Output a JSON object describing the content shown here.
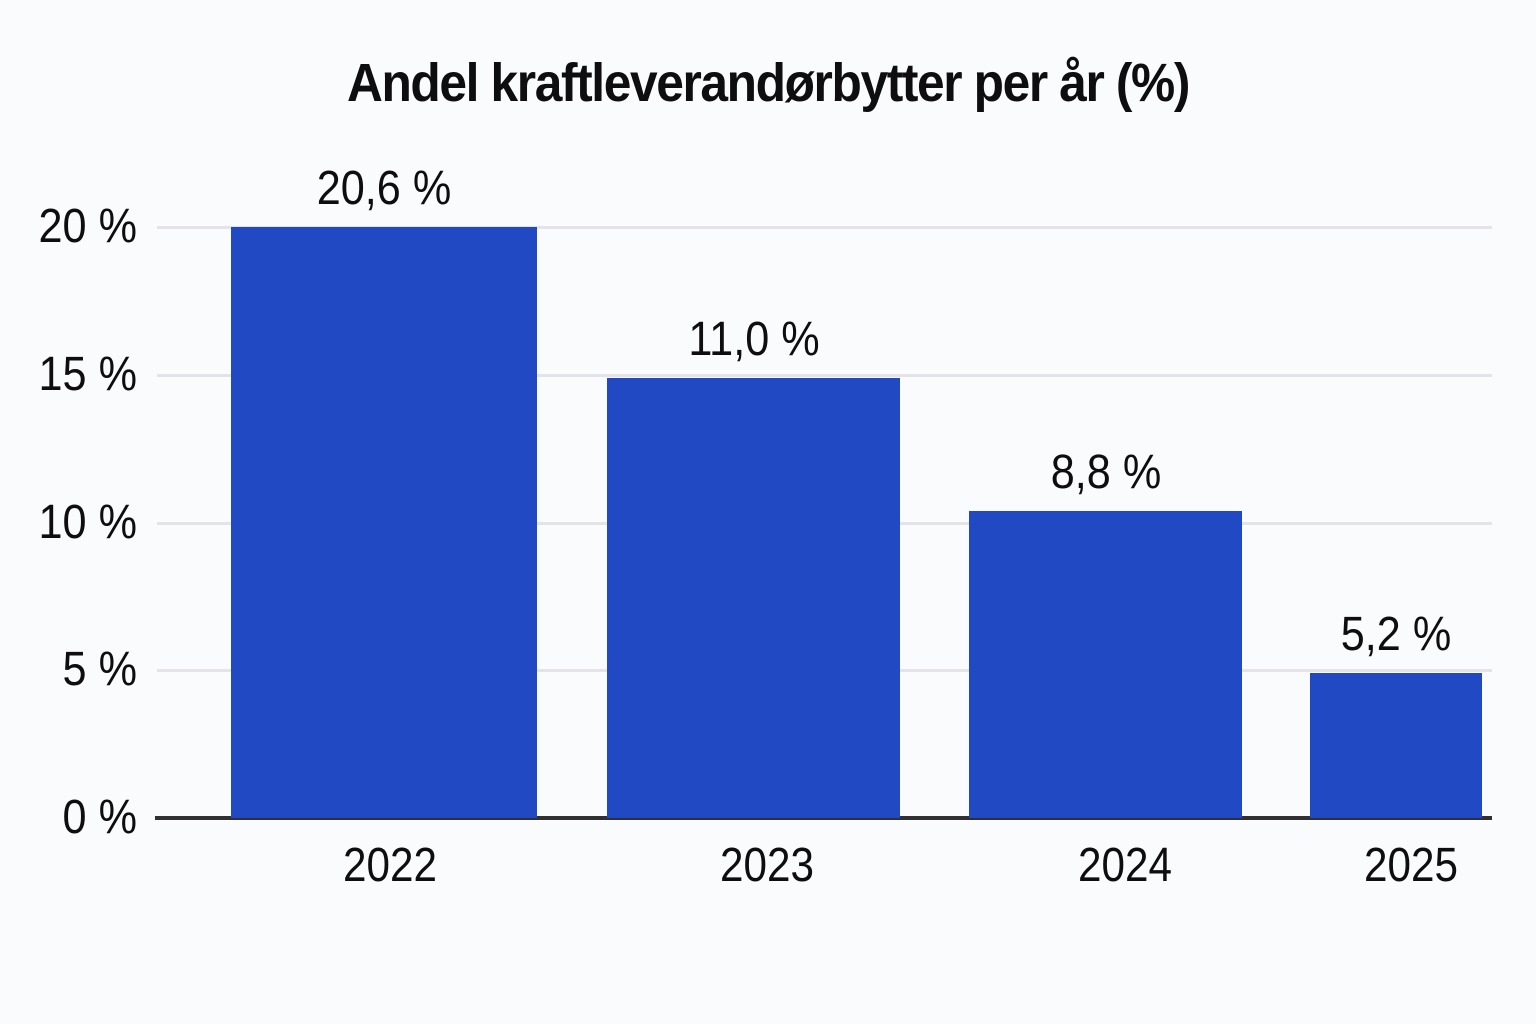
{
  "chart_data": {
    "type": "bar",
    "title": "Andel kraftleverandørbytter per år (%)",
    "categories": [
      "2022",
      "2023",
      "2024",
      "2025"
    ],
    "values": [
      20.6,
      11.0,
      8.8,
      5.2
    ],
    "value_labels": [
      "20,6 %",
      "11,0 %",
      "8,8 %",
      "5,2 %"
    ],
    "visual_bar_heights_axis_units": [
      20.0,
      14.9,
      10.4,
      4.9
    ],
    "y_ticks": [
      {
        "value": 0,
        "label": "0 %"
      },
      {
        "value": 5,
        "label": "5 %"
      },
      {
        "value": 10,
        "label": "10 %"
      },
      {
        "value": 15,
        "label": "15 %"
      },
      {
        "value": 20,
        "label": "20 %"
      }
    ],
    "ylim": [
      0,
      21.7
    ],
    "xlabel": "",
    "ylabel": "",
    "grid": true,
    "legend": "none",
    "colors": {
      "bar": "#2149c4",
      "background": "#fafbfd",
      "gridline": "#e4e4e8",
      "axis_line": "#303032",
      "text": "#0e0e10"
    }
  }
}
